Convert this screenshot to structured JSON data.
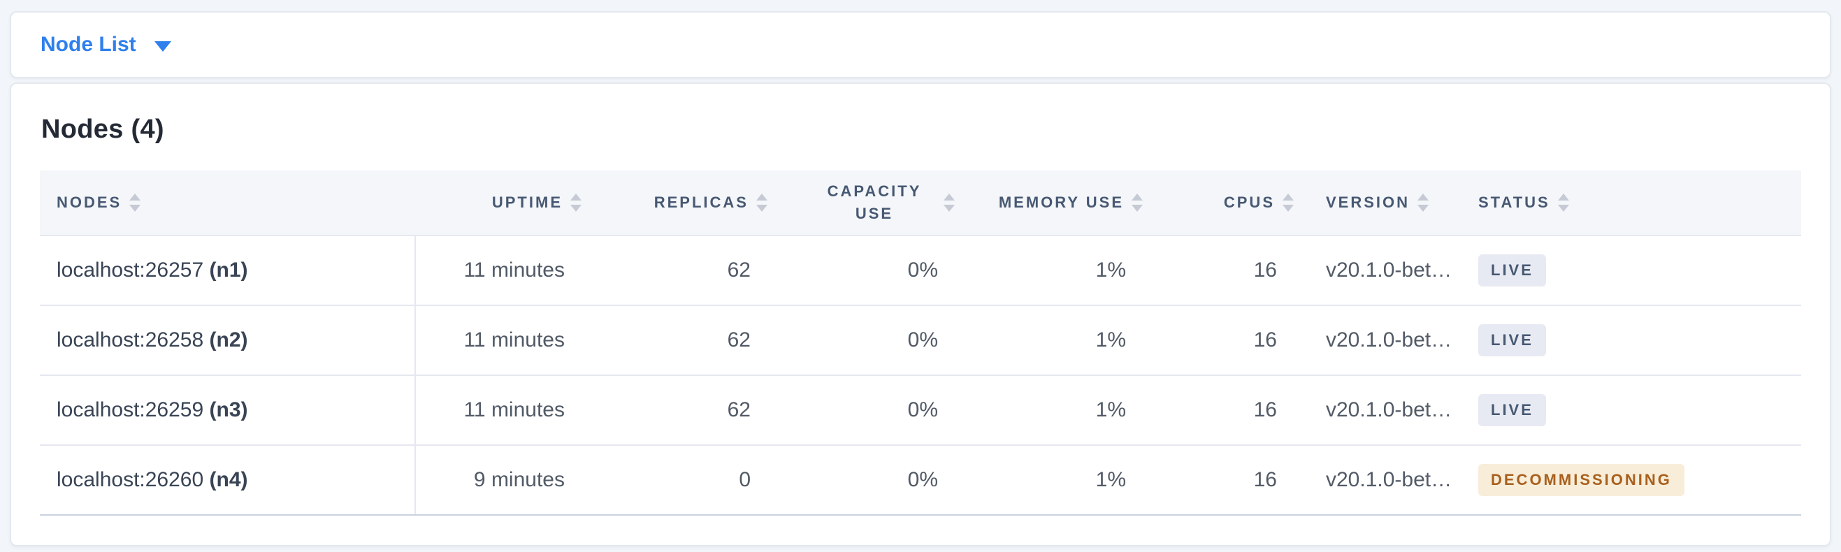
{
  "topbar": {
    "dropdown_label": "Node List"
  },
  "panel": {
    "title": "Nodes (4)"
  },
  "table": {
    "columns": [
      {
        "id": "nodes",
        "label": "NODES",
        "align": "left"
      },
      {
        "id": "uptime",
        "label": "UPTIME",
        "align": "right"
      },
      {
        "id": "replicas",
        "label": "REPLICAS",
        "align": "right"
      },
      {
        "id": "capacity-use",
        "label": "CAPACITY USE",
        "align": "right",
        "wrap": true
      },
      {
        "id": "memory-use",
        "label": "MEMORY USE",
        "align": "right"
      },
      {
        "id": "cpus",
        "label": "CPUS",
        "align": "right"
      },
      {
        "id": "version",
        "label": "VERSION",
        "align": "left"
      },
      {
        "id": "status",
        "label": "STATUS",
        "align": "left"
      }
    ],
    "rows": [
      {
        "address": "localhost:26257",
        "node_id": "(n1)",
        "uptime": "11 minutes",
        "replicas": "62",
        "capacity_use": "0%",
        "memory_use": "1%",
        "cpus": "16",
        "version": "v20.1.0-bet…",
        "status": "LIVE"
      },
      {
        "address": "localhost:26258",
        "node_id": "(n2)",
        "uptime": "11 minutes",
        "replicas": "62",
        "capacity_use": "0%",
        "memory_use": "1%",
        "cpus": "16",
        "version": "v20.1.0-bet…",
        "status": "LIVE"
      },
      {
        "address": "localhost:26259",
        "node_id": "(n3)",
        "uptime": "11 minutes",
        "replicas": "62",
        "capacity_use": "0%",
        "memory_use": "1%",
        "cpus": "16",
        "version": "v20.1.0-bet…",
        "status": "LIVE"
      },
      {
        "address": "localhost:26260",
        "node_id": "(n4)",
        "uptime": "9 minutes",
        "replicas": "0",
        "capacity_use": "0%",
        "memory_use": "1%",
        "cpus": "16",
        "version": "v20.1.0-bet…",
        "status": "DECOMMISSIONING"
      }
    ]
  },
  "colors": {
    "page_bg": "#F2F5F9",
    "card_border": "#E4E8EF",
    "header_bg": "#F4F6F9",
    "accent_blue": "#2F80ED",
    "title_text": "#242A35",
    "header_text": "#475872",
    "sort_icon": "#C5CAD4",
    "address_text": "#394455",
    "value_text": "#525A66",
    "row_border": "#E5E8F0",
    "table_bottom_border": "#CBD2E0",
    "live_bg": "#E7EAF3",
    "live_text": "#475872",
    "decommissioning_bg": "#F8EDD8",
    "decommissioning_text": "#A8601E"
  }
}
